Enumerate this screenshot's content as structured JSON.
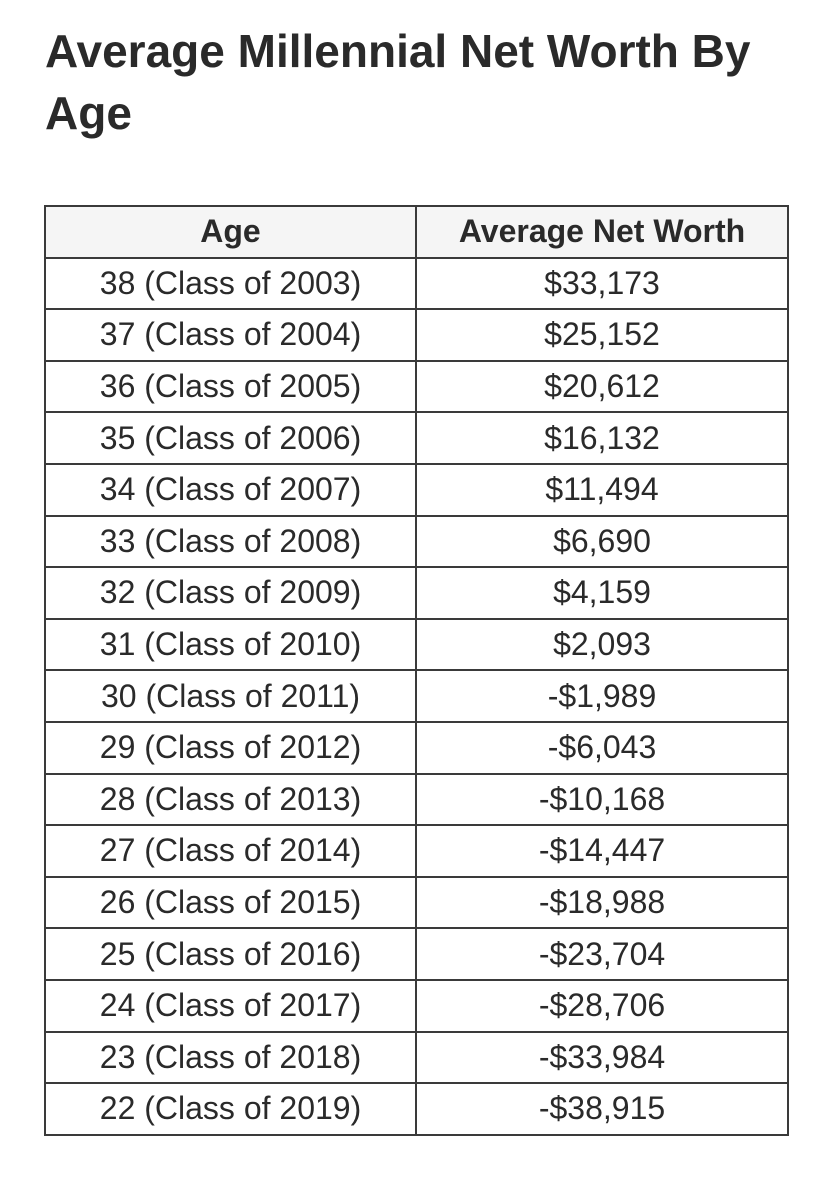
{
  "header": {
    "title": "Average Millennial Net Worth By Age"
  },
  "table": {
    "columns": [
      "Age",
      "Average Net Worth"
    ],
    "rows": [
      [
        "38 (Class of 2003)",
        "$33,173"
      ],
      [
        "37 (Class of 2004)",
        "$25,152"
      ],
      [
        "36 (Class of 2005)",
        "$20,612"
      ],
      [
        "35 (Class of 2006)",
        "$16,132"
      ],
      [
        "34 (Class of 2007)",
        "$11,494"
      ],
      [
        "33 (Class of 2008)",
        "$6,690"
      ],
      [
        "32 (Class of 2009)",
        "$4,159"
      ],
      [
        "31 (Class of 2010)",
        "$2,093"
      ],
      [
        "30 (Class of 2011)",
        "-$1,989"
      ],
      [
        "29 (Class of 2012)",
        "-$6,043"
      ],
      [
        "28 (Class of 2013)",
        "-$10,168"
      ],
      [
        "27 (Class of 2014)",
        "-$14,447"
      ],
      [
        "26 (Class of 2015)",
        "-$18,988"
      ],
      [
        "25 (Class of 2016)",
        "-$23,704"
      ],
      [
        "24 (Class of 2017)",
        "-$28,706"
      ],
      [
        "23 (Class of 2018)",
        "-$33,984"
      ],
      [
        "22 (Class of 2019)",
        "-$38,915"
      ]
    ]
  }
}
